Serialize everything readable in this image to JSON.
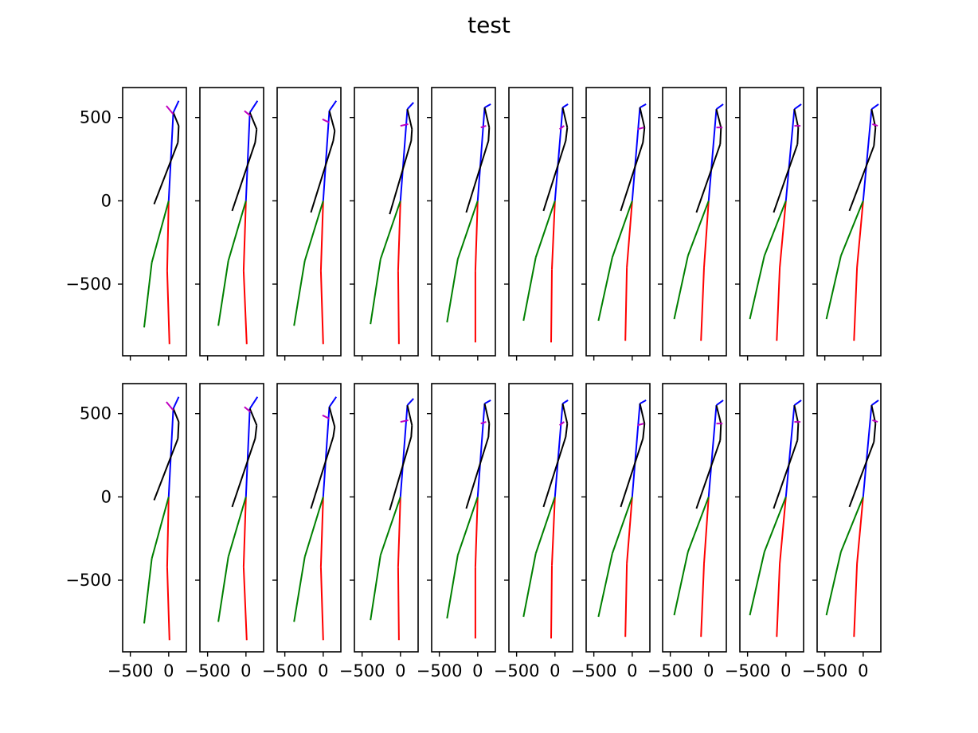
{
  "title": "test",
  "chart_data": {
    "type": "line",
    "title": "test",
    "xlabel": "",
    "ylabel": "",
    "rows": 2,
    "cols": 10,
    "xlim": [
      -600,
      230
    ],
    "ylim": [
      -930,
      680
    ],
    "xticks": [
      -500,
      0
    ],
    "xtick_labels": [
      "−500",
      "0"
    ],
    "yticks": [
      500,
      0,
      -500
    ],
    "ytick_labels": [
      "500",
      "0",
      "−500"
    ],
    "grid": false,
    "bone_colors": {
      "right_leg": "#ff0000",
      "left_leg": "#008000",
      "spine": "#0000ff",
      "right_arm": "#000000",
      "left_arm": "#000000",
      "head": "#c000c0"
    },
    "frames": [
      {
        "pelvis": [
          0,
          0
        ],
        "r_knee": [
          -20,
          -420
        ],
        "r_ankle": [
          10,
          -860
        ],
        "l_knee": [
          -220,
          -370
        ],
        "l_ankle": [
          -320,
          -760
        ],
        "neck": [
          60,
          530
        ],
        "head_top": [
          130,
          600
        ],
        "l_shoulder": [
          130,
          450
        ],
        "l_elbow": [
          120,
          350
        ],
        "l_hand": [
          -190,
          -20
        ],
        "face_a": [
          -30,
          570
        ],
        "face_b": [
          60,
          520
        ]
      },
      {
        "pelvis": [
          0,
          0
        ],
        "r_knee": [
          -30,
          -420
        ],
        "r_ankle": [
          10,
          -860
        ],
        "l_knee": [
          -230,
          -360
        ],
        "l_ankle": [
          -360,
          -750
        ],
        "neck": [
          50,
          530
        ],
        "head_top": [
          150,
          600
        ],
        "l_shoulder": [
          140,
          430
        ],
        "l_elbow": [
          120,
          350
        ],
        "l_hand": [
          -180,
          -60
        ],
        "face_a": [
          -20,
          540
        ],
        "face_b": [
          60,
          510
        ]
      },
      {
        "pelvis": [
          0,
          0
        ],
        "r_knee": [
          -30,
          -420
        ],
        "r_ankle": [
          0,
          -860
        ],
        "l_knee": [
          -240,
          -360
        ],
        "l_ankle": [
          -380,
          -750
        ],
        "neck": [
          80,
          540
        ],
        "head_top": [
          170,
          600
        ],
        "l_shoulder": [
          150,
          420
        ],
        "l_elbow": [
          130,
          360
        ],
        "l_hand": [
          -160,
          -70
        ],
        "face_a": [
          -10,
          490
        ],
        "face_b": [
          80,
          470
        ]
      },
      {
        "pelvis": [
          0,
          0
        ],
        "r_knee": [
          -30,
          -420
        ],
        "r_ankle": [
          -20,
          -860
        ],
        "l_knee": [
          -260,
          -350
        ],
        "l_ankle": [
          -390,
          -740
        ],
        "neck": [
          90,
          550
        ],
        "head_top": [
          170,
          590
        ],
        "l_shoulder": [
          150,
          430
        ],
        "l_elbow": [
          140,
          360
        ],
        "l_hand": [
          -140,
          -80
        ],
        "face_a": [
          0,
          450
        ],
        "face_b": [
          100,
          460
        ]
      },
      {
        "pelvis": [
          0,
          0
        ],
        "r_knee": [
          -30,
          -420
        ],
        "r_ankle": [
          -30,
          -850
        ],
        "l_knee": [
          -260,
          -350
        ],
        "l_ankle": [
          -400,
          -730
        ],
        "neck": [
          90,
          560
        ],
        "head_top": [
          170,
          580
        ],
        "l_shoulder": [
          150,
          440
        ],
        "l_elbow": [
          140,
          360
        ],
        "l_hand": [
          -150,
          -70
        ],
        "face_a": [
          40,
          440
        ],
        "face_b": [
          110,
          450
        ]
      },
      {
        "pelvis": [
          0,
          0
        ],
        "r_knee": [
          -40,
          -410
        ],
        "r_ankle": [
          -50,
          -850
        ],
        "l_knee": [
          -250,
          -340
        ],
        "l_ankle": [
          -410,
          -720
        ],
        "neck": [
          100,
          560
        ],
        "head_top": [
          170,
          580
        ],
        "l_shoulder": [
          160,
          440
        ],
        "l_elbow": [
          140,
          360
        ],
        "l_hand": [
          -150,
          -60
        ],
        "face_a": [
          60,
          430
        ],
        "face_b": [
          120,
          450
        ]
      },
      {
        "pelvis": [
          0,
          0
        ],
        "r_knee": [
          -70,
          -400
        ],
        "r_ankle": [
          -90,
          -840
        ],
        "l_knee": [
          -260,
          -340
        ],
        "l_ankle": [
          -440,
          -720
        ],
        "neck": [
          100,
          560
        ],
        "head_top": [
          180,
          580
        ],
        "l_shoulder": [
          160,
          440
        ],
        "l_elbow": [
          140,
          350
        ],
        "l_hand": [
          -150,
          -60
        ],
        "face_a": [
          70,
          430
        ],
        "face_b": [
          150,
          440
        ]
      },
      {
        "pelvis": [
          0,
          0
        ],
        "r_knee": [
          -60,
          -400
        ],
        "r_ankle": [
          -100,
          -840
        ],
        "l_knee": [
          -270,
          -330
        ],
        "l_ankle": [
          -450,
          -710
        ],
        "neck": [
          100,
          550
        ],
        "head_top": [
          190,
          580
        ],
        "l_shoulder": [
          160,
          440
        ],
        "l_elbow": [
          150,
          340
        ],
        "l_hand": [
          -160,
          -70
        ],
        "face_a": [
          100,
          440
        ],
        "face_b": [
          180,
          440
        ]
      },
      {
        "pelvis": [
          0,
          0
        ],
        "r_knee": [
          -80,
          -400
        ],
        "r_ankle": [
          -120,
          -840
        ],
        "l_knee": [
          -280,
          -330
        ],
        "l_ankle": [
          -470,
          -710
        ],
        "neck": [
          110,
          550
        ],
        "head_top": [
          200,
          580
        ],
        "l_shoulder": [
          160,
          440
        ],
        "l_elbow": [
          150,
          340
        ],
        "l_hand": [
          -160,
          -70
        ],
        "face_a": [
          110,
          450
        ],
        "face_b": [
          190,
          450
        ]
      },
      {
        "pelvis": [
          0,
          0
        ],
        "r_knee": [
          -80,
          -400
        ],
        "r_ankle": [
          -120,
          -840
        ],
        "l_knee": [
          -290,
          -330
        ],
        "l_ankle": [
          -480,
          -710
        ],
        "neck": [
          110,
          550
        ],
        "head_top": [
          200,
          580
        ],
        "l_shoulder": [
          160,
          440
        ],
        "l_elbow": [
          140,
          330
        ],
        "l_hand": [
          -180,
          -60
        ],
        "face_a": [
          120,
          460
        ],
        "face_b": [
          190,
          450
        ]
      }
    ],
    "annotation": "bottom row repeats the same 10 frames as the top row"
  }
}
